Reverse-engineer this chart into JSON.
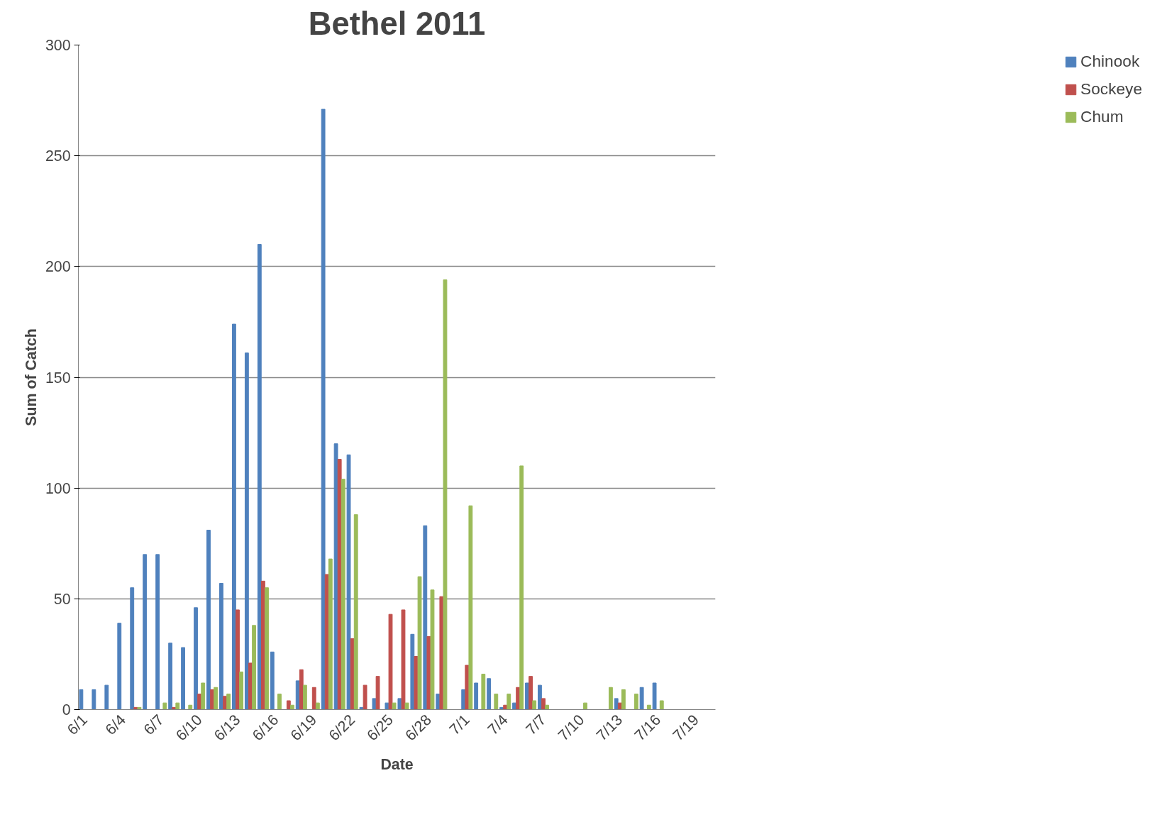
{
  "chart_data": {
    "type": "bar",
    "title": "Bethel 2011",
    "xlabel": "Date",
    "ylabel": "Sum of Catch",
    "categories": [
      "6/1",
      null,
      null,
      "6/4",
      null,
      null,
      "6/7",
      null,
      null,
      "6/10",
      null,
      null,
      "6/13",
      null,
      null,
      "6/16",
      null,
      null,
      "6/19",
      null,
      null,
      "6/22",
      null,
      null,
      "6/25",
      null,
      null,
      "6/28",
      null,
      null,
      "7/1",
      null,
      null,
      "7/4",
      null,
      null,
      "7/7",
      null,
      null,
      "7/10",
      null,
      null,
      "7/13",
      null,
      null,
      "7/16",
      null,
      null,
      "7/19",
      null
    ],
    "series": [
      {
        "name": "Chinook",
        "color": "#4f81bd",
        "values": [
          9,
          9,
          11,
          39,
          55,
          70,
          70,
          30,
          28,
          46,
          81,
          57,
          174,
          161,
          210,
          26,
          0,
          13,
          0,
          271,
          120,
          115,
          1,
          5,
          3,
          5,
          34,
          83,
          7,
          0,
          9,
          12,
          14,
          1,
          3,
          12,
          11,
          0,
          0,
          0,
          0,
          0,
          5,
          0,
          10,
          12,
          0,
          0,
          0,
          0
        ]
      },
      {
        "name": "Sockeye",
        "color": "#c0504d",
        "values": [
          0,
          0,
          0,
          0,
          1,
          0,
          0,
          1,
          0,
          7,
          9,
          6,
          45,
          21,
          58,
          0,
          4,
          18,
          10,
          61,
          113,
          32,
          11,
          15,
          43,
          45,
          24,
          33,
          51,
          0,
          20,
          0,
          0,
          2,
          10,
          15,
          5,
          0,
          0,
          0,
          0,
          0,
          3,
          0,
          0,
          0,
          0,
          0,
          0,
          0
        ]
      },
      {
        "name": "Chum",
        "color": "#9bbb59",
        "values": [
          0,
          0,
          0,
          0,
          1,
          0,
          3,
          3,
          2,
          12,
          10,
          7,
          17,
          38,
          55,
          7,
          2,
          11,
          3,
          68,
          104,
          88,
          0,
          0,
          3,
          3,
          60,
          54,
          194,
          0,
          92,
          16,
          7,
          7,
          110,
          4,
          2,
          0,
          0,
          3,
          0,
          10,
          9,
          7,
          2,
          4,
          0,
          0,
          0,
          0
        ]
      }
    ],
    "ylim": [
      0,
      300
    ],
    "yticks": [
      0,
      50,
      100,
      150,
      200,
      250,
      300
    ],
    "grid": "y",
    "legend": "right"
  }
}
